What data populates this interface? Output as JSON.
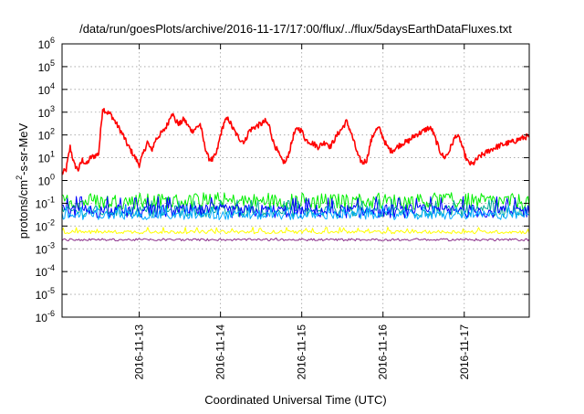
{
  "chart_data": {
    "type": "line",
    "title": "/data/run/goesPlots/archive/2016-11-17/17:00/flux/../flux/5daysEarthDataFluxes.txt",
    "xlabel": "Coordinated Universal Time (UTC)",
    "ylabel": {
      "base": "protons/cm",
      "exponent": "2",
      "rest": "-s-sr-MeV"
    },
    "y_scale": "log",
    "ylim": [
      1e-06,
      1000000.0
    ],
    "xlim_days": [
      12.05,
      17.8
    ],
    "x_ticks": [
      {
        "label": "2016-11-13",
        "day": 13
      },
      {
        "label": "2016-11-14",
        "day": 14
      },
      {
        "label": "2016-11-15",
        "day": 15
      },
      {
        "label": "2016-11-16",
        "day": 16
      },
      {
        "label": "2016-11-17",
        "day": 17
      }
    ],
    "y_ticks": [
      {
        "base": "10",
        "exp": "6"
      },
      {
        "base": "10",
        "exp": "5"
      },
      {
        "base": "10",
        "exp": "4"
      },
      {
        "base": "10",
        "exp": "3"
      },
      {
        "base": "10",
        "exp": "2"
      },
      {
        "base": "10",
        "exp": "1"
      },
      {
        "base": "10",
        "exp": "0"
      },
      {
        "base": "10",
        "exp": "-1"
      },
      {
        "base": "10",
        "exp": "-2"
      },
      {
        "base": "10",
        "exp": "-3"
      },
      {
        "base": "10",
        "exp": "-4"
      },
      {
        "base": "10",
        "exp": "-5"
      },
      {
        "base": "10",
        "exp": "-6"
      }
    ],
    "grid": true,
    "series": [
      {
        "color": "#ff0000",
        "x": [
          12.05,
          12.1,
          12.15,
          12.2,
          12.25,
          12.3,
          12.35,
          12.4,
          12.45,
          12.5,
          12.55,
          12.6,
          12.65,
          12.7,
          12.75,
          12.8,
          12.85,
          12.9,
          12.95,
          13.0,
          13.05,
          13.1,
          13.15,
          13.2,
          13.25,
          13.3,
          13.35,
          13.4,
          13.45,
          13.5,
          13.55,
          13.6,
          13.65,
          13.7,
          13.75,
          13.8,
          13.85,
          13.9,
          13.95,
          14.0,
          14.05,
          14.1,
          14.15,
          14.2,
          14.25,
          14.3,
          14.35,
          14.4,
          14.45,
          14.5,
          14.55,
          14.6,
          14.65,
          14.7,
          14.75,
          14.8,
          14.85,
          14.9,
          14.95,
          15.0,
          15.05,
          15.1,
          15.15,
          15.2,
          15.25,
          15.3,
          15.35,
          15.4,
          15.45,
          15.5,
          15.55,
          15.6,
          15.65,
          15.7,
          15.75,
          15.8,
          15.85,
          15.9,
          15.95,
          16.0,
          16.05,
          16.1,
          16.15,
          16.2,
          16.25,
          16.3,
          16.35,
          16.4,
          16.45,
          16.5,
          16.55,
          16.6,
          16.65,
          16.7,
          16.75,
          16.8,
          16.85,
          16.9,
          16.95,
          17.0,
          17.05,
          17.1,
          17.15,
          17.2,
          17.25,
          17.3,
          17.35,
          17.4,
          17.45,
          17.5,
          17.55,
          17.6,
          17.65,
          17.7,
          17.75,
          17.8
        ],
        "values": [
          2,
          3,
          30,
          5,
          3,
          8,
          5,
          10,
          12,
          15,
          1500,
          1000,
          800,
          400,
          200,
          100,
          40,
          20,
          10,
          5,
          15,
          50,
          20,
          60,
          100,
          150,
          300,
          1000,
          400,
          300,
          500,
          250,
          150,
          200,
          300,
          40,
          10,
          8,
          15,
          100,
          400,
          500,
          200,
          100,
          60,
          50,
          150,
          200,
          250,
          300,
          400,
          250,
          50,
          20,
          8,
          6,
          20,
          100,
          200,
          150,
          60,
          50,
          40,
          30,
          40,
          50,
          30,
          60,
          120,
          200,
          400,
          150,
          40,
          10,
          6,
          8,
          50,
          150,
          200,
          80,
          30,
          20,
          25,
          35,
          45,
          50,
          70,
          100,
          120,
          150,
          200,
          180,
          60,
          20,
          10,
          15,
          40,
          100,
          60,
          15,
          6,
          5,
          8,
          12,
          15,
          20,
          25,
          30,
          35,
          40,
          45,
          50,
          60,
          70,
          80,
          90
        ]
      },
      {
        "color": "#00ee00",
        "base": 0.12,
        "spread": 0.7,
        "peak": 0.3
      },
      {
        "color": "#00aa99",
        "base": 0.045,
        "spread": 0.5,
        "peak": 0.15
      },
      {
        "color": "#0000ff",
        "base": 0.045,
        "spread": 0.6,
        "peak": 0.2
      },
      {
        "color": "#00aaff",
        "base": 0.03,
        "spread": 0.4,
        "peak": 0.08
      },
      {
        "color": "#ffff00",
        "base": 0.0055,
        "spread": 0.15,
        "peak": 0.009
      },
      {
        "color": "#8b2f8b",
        "base": 0.0025,
        "spread": 0.1,
        "peak": 0.003
      }
    ]
  }
}
